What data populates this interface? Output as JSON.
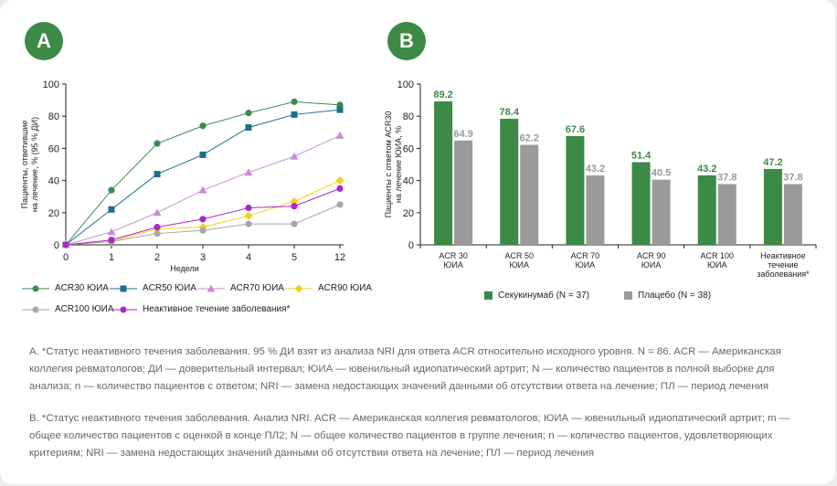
{
  "panels": {
    "a_label": "A",
    "b_label": "B"
  },
  "colors": {
    "green_dark": "#3b8a45",
    "acr30": "#3a8a4e",
    "acr50": "#1f6e8c",
    "acr70": "#c88fd4",
    "acr90": "#f5cf1d",
    "acr100": "#a7a7a7",
    "inactive": "#a82ac2",
    "secukinumab": "#3b8a45",
    "placebo": "#9a9a9a"
  },
  "chart_data": [
    {
      "type": "line",
      "ylabel": "Пациенты, ответившие на лечение, % (95 % ДИ)",
      "xlabel": "Недели",
      "categories": [
        "0",
        "1",
        "2",
        "3",
        "4",
        "5",
        "12"
      ],
      "ylim": [
        0,
        100
      ],
      "yticks": [
        0,
        20,
        40,
        60,
        80,
        100
      ],
      "series": [
        {
          "name": "ACR30 ЮИА",
          "marker": "circle",
          "color_key": "acr30",
          "values": [
            0,
            34,
            63,
            74,
            82,
            89,
            87
          ]
        },
        {
          "name": "ACR50 ЮИА",
          "marker": "square",
          "color_key": "acr50",
          "values": [
            0,
            22,
            44,
            56,
            73,
            81,
            84
          ]
        },
        {
          "name": "ACR70 ЮИА",
          "marker": "triangle",
          "color_key": "acr70",
          "values": [
            0,
            8,
            20,
            34,
            45,
            55,
            68
          ]
        },
        {
          "name": "ACR90 ЮИА",
          "marker": "diamond",
          "color_key": "acr90",
          "values": [
            0,
            2,
            10,
            11,
            18,
            27,
            40
          ]
        },
        {
          "name": "ACR100 ЮИА",
          "marker": "circle",
          "color_key": "acr100",
          "values": [
            0,
            2,
            7,
            9,
            13,
            13,
            25
          ]
        },
        {
          "name": "Неактивное течение заболевания*",
          "marker": "circle",
          "color_key": "inactive",
          "values": [
            0,
            3,
            11,
            16,
            23,
            24,
            35
          ]
        }
      ]
    },
    {
      "type": "bar",
      "ylabel": "Пациенты с ответом ACR30 на лечение ЮИА, %",
      "categories": [
        "ACR 30 ЮИА",
        "ACR 50 ЮИА",
        "ACR 70 ЮИА",
        "ACR 90 ЮИА",
        "ACR 100 ЮИА",
        "Неактивное течение заболевания*"
      ],
      "category_lines": [
        [
          "ACR 30",
          "ЮИА"
        ],
        [
          "ACR 50",
          "ЮИА"
        ],
        [
          "ACR 70",
          "ЮИА"
        ],
        [
          "ACR 90",
          "ЮИА"
        ],
        [
          "ACR 100",
          "ЮИА"
        ],
        [
          "Неактивное",
          "течение",
          "заболевания*"
        ]
      ],
      "ylim": [
        0,
        100
      ],
      "yticks": [
        0,
        20,
        40,
        60,
        80,
        100
      ],
      "series": [
        {
          "name": "Секукинумаб (N = 37)",
          "color_key": "secukinumab",
          "values": [
            89.2,
            78.4,
            67.6,
            51.4,
            43.2,
            47.2
          ],
          "labels": [
            "89.2",
            "78.4",
            "67.6",
            "51.4",
            "43.2",
            "47.2"
          ]
        },
        {
          "name": "Плацебо (N = 38)",
          "color_key": "placebo",
          "values": [
            64.9,
            62.2,
            43.2,
            40.5,
            37.8,
            37.8
          ],
          "labels": [
            "64.9",
            "62.2",
            "43.2",
            "40.5",
            "37.8",
            "37.8"
          ]
        }
      ]
    }
  ],
  "notes": {
    "a": "A. *Статус неактивного течения заболевания. 95 % ДИ взят из анализа NRI для ответа ACR относительно исходного уровня. N = 86. ACR — Американская коллегия ревматологов; ДИ — доверительный интервал; ЮИА — ювенильный идиопатический артрит; N — количество пациентов в полной выборке для анализа; n — количество пациентов с ответом; NRI — замена недостающих значений данными об отсутствии ответа на лечение; ПЛ — период лечения",
    "b": "B. *Статус неактивного течения заболевания. Анализ NRI. ACR — Американская коллегия ревматологов; ЮИА — ювенильный идиопатический артрит; m — общее количество пациентов с оценкой в конце ПЛ2; N — общее количество пациентов в группе лечения; n — количество пациентов, удовлетворяющих критериям; NRI — замена недостающих значений данными об отсутствии ответа на лечение; ПЛ — период лечения"
  }
}
